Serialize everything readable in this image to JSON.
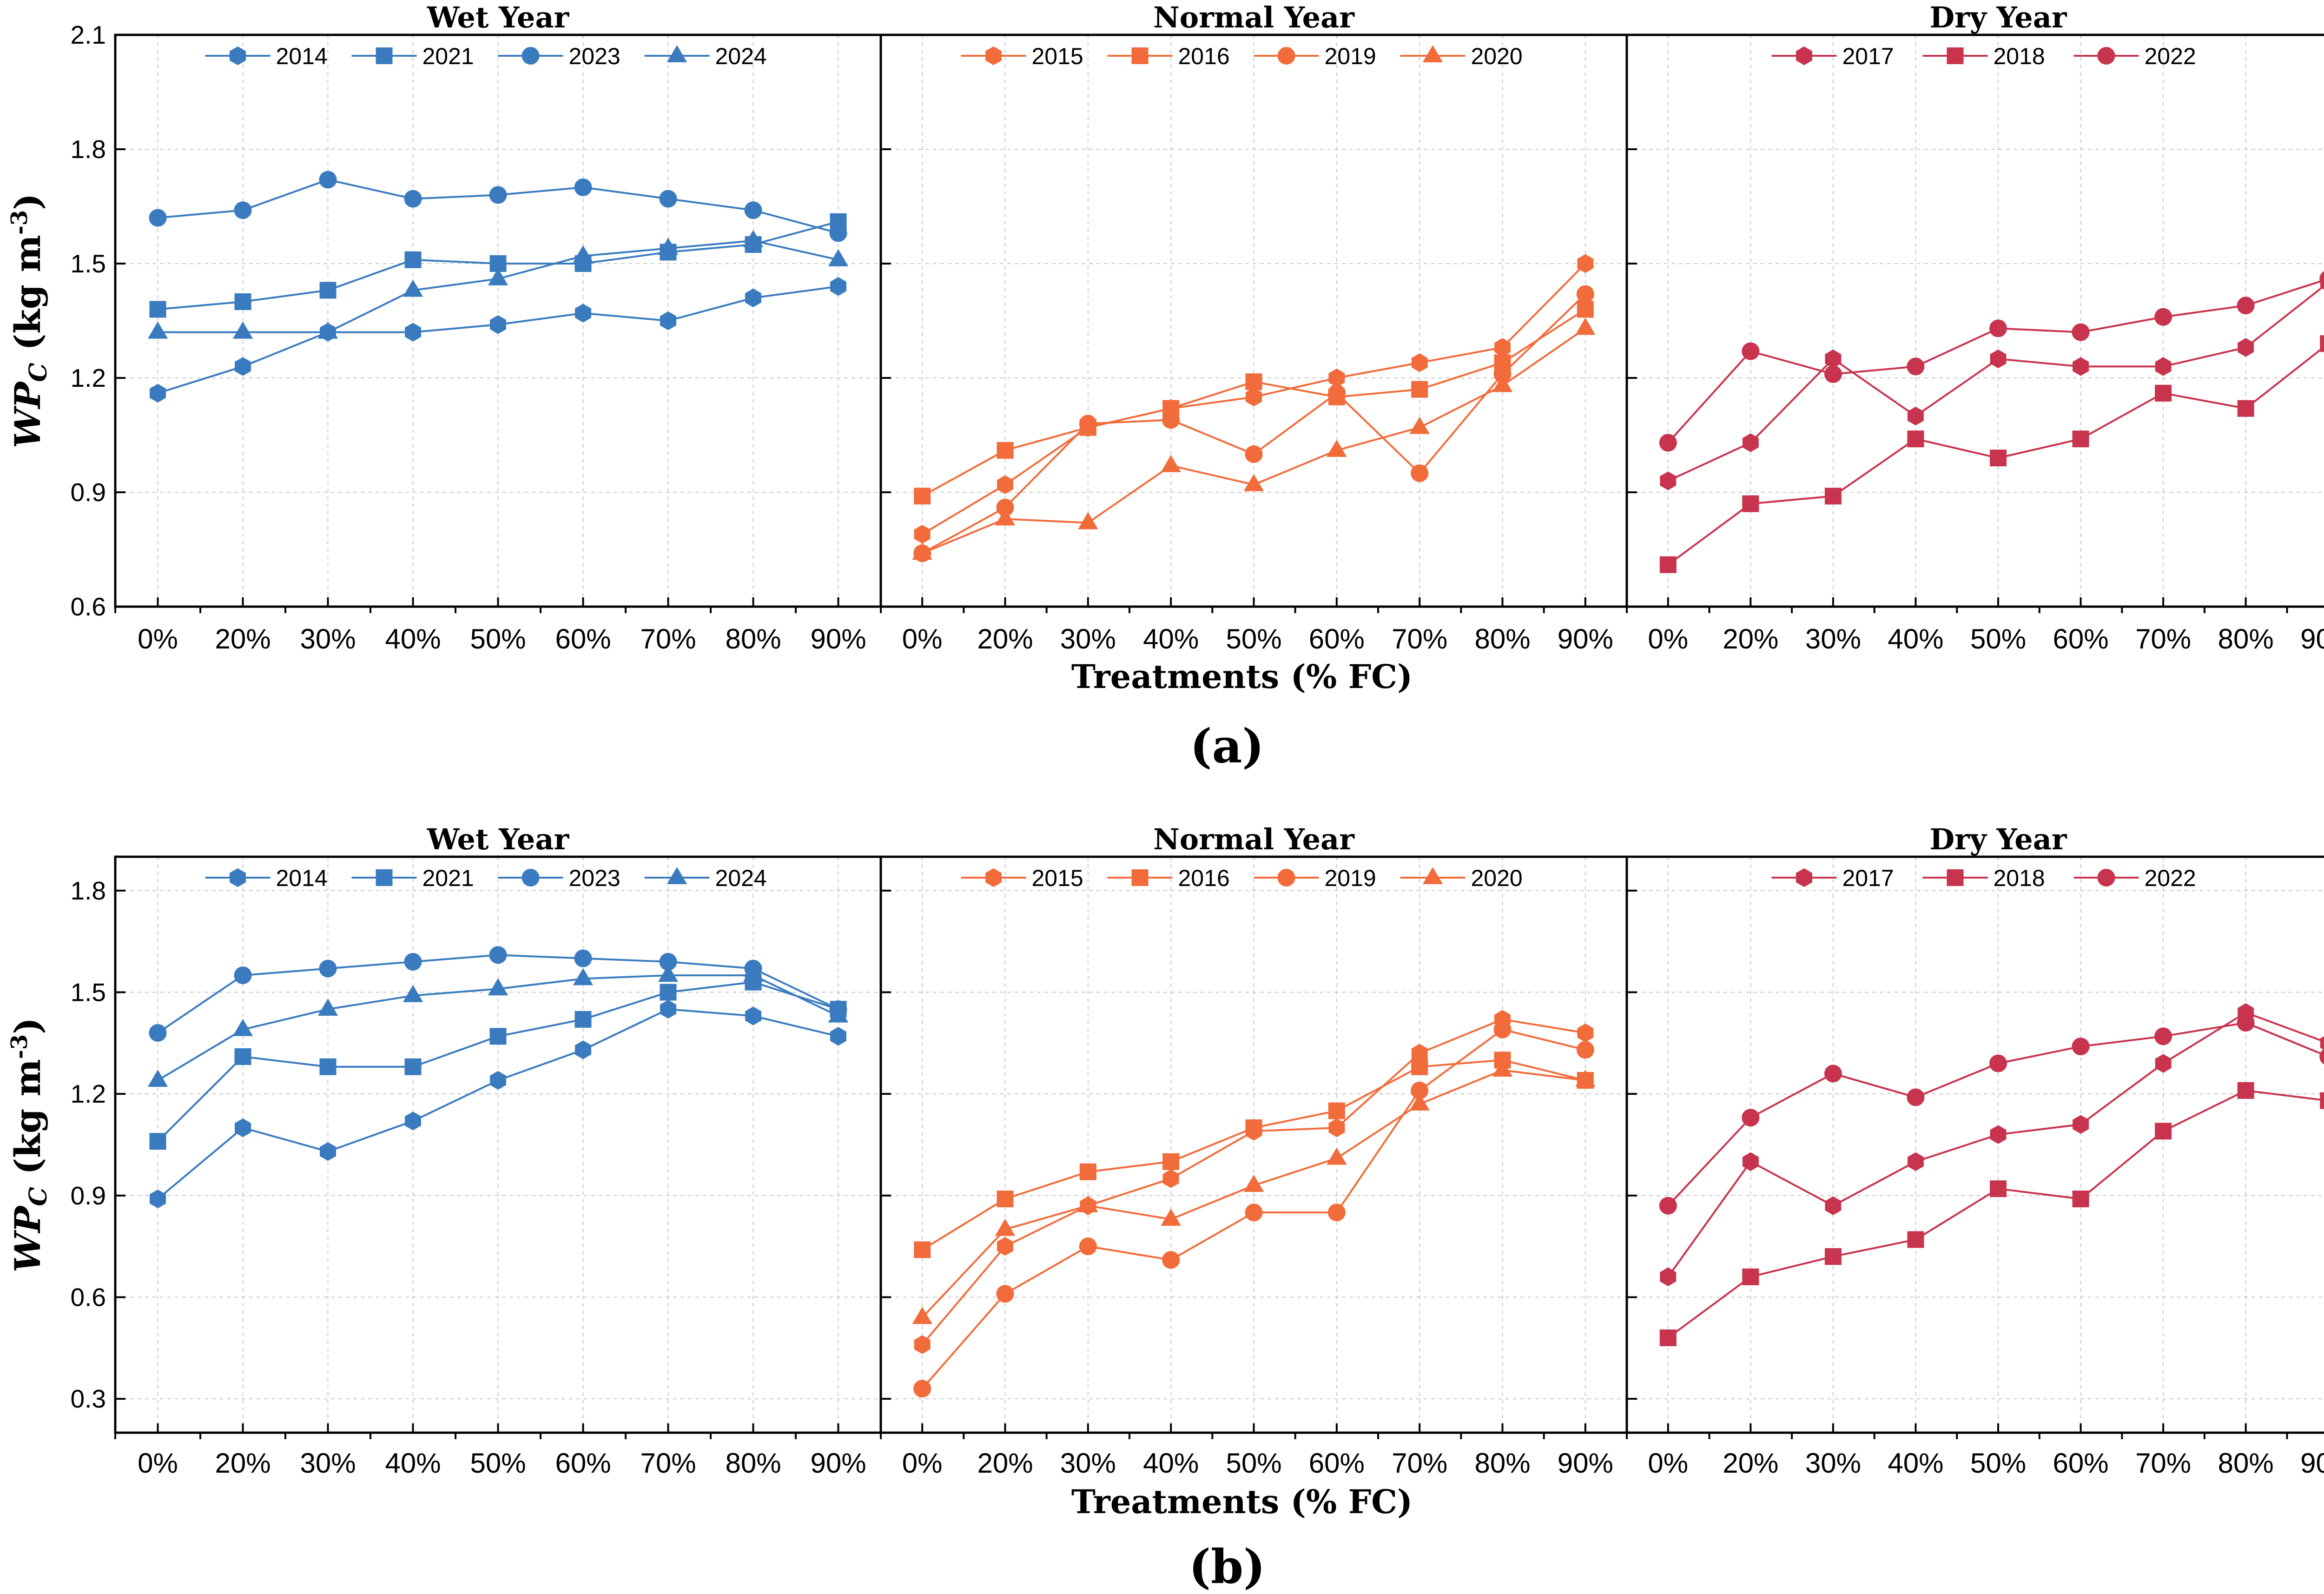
{
  "chart_data": [
    {
      "type": "line",
      "caption": "(a)",
      "ylabel_main": "WP",
      "ylabel_sub": "C",
      "ylabel_units": " (kg m",
      "ylabel_exp": "-3",
      "ylabel_close": ")",
      "xlabel": "Treatments (% FC)",
      "ylim": [
        0.6,
        2.1
      ],
      "yticks": [
        "0.6",
        "0.9",
        "1.2",
        "1.5",
        "1.8",
        "2.1"
      ],
      "ytick_values": [
        0.6,
        0.9,
        1.2,
        1.5,
        1.8,
        2.1
      ],
      "categories": [
        "0%",
        "20%",
        "30%",
        "40%",
        "50%",
        "60%",
        "70%",
        "80%",
        "90%"
      ],
      "panels": [
        {
          "title": "Wet Year",
          "color": "#3a7bbf",
          "series": [
            {
              "name": "2014",
              "marker": "hexagon",
              "values": [
                1.16,
                1.23,
                1.32,
                1.32,
                1.34,
                1.37,
                1.35,
                1.41,
                1.44
              ]
            },
            {
              "name": "2021",
              "marker": "square",
              "values": [
                1.38,
                1.4,
                1.43,
                1.51,
                1.5,
                1.5,
                1.53,
                1.55,
                1.61
              ]
            },
            {
              "name": "2023",
              "marker": "circle",
              "values": [
                1.62,
                1.64,
                1.72,
                1.67,
                1.68,
                1.7,
                1.67,
                1.64,
                1.58
              ]
            },
            {
              "name": "2024",
              "marker": "triangle",
              "values": [
                1.32,
                1.32,
                1.32,
                1.43,
                1.46,
                1.52,
                1.54,
                1.56,
                1.51
              ]
            }
          ]
        },
        {
          "title": "Normal Year",
          "color": "#f26b3a",
          "series": [
            {
              "name": "2015",
              "marker": "hexagon",
              "values": [
                0.79,
                0.92,
                1.07,
                1.12,
                1.15,
                1.2,
                1.24,
                1.28,
                1.5
              ]
            },
            {
              "name": "2016",
              "marker": "square",
              "values": [
                0.89,
                1.01,
                1.07,
                1.12,
                1.19,
                1.15,
                1.17,
                1.24,
                1.38
              ]
            },
            {
              "name": "2019",
              "marker": "circle",
              "values": [
                0.74,
                0.86,
                1.08,
                1.09,
                1.0,
                1.16,
                0.95,
                1.21,
                1.42
              ]
            },
            {
              "name": "2020",
              "marker": "triangle",
              "values": [
                0.74,
                0.83,
                0.82,
                0.97,
                0.92,
                1.01,
                1.07,
                1.18,
                1.33
              ]
            }
          ]
        },
        {
          "title": "Dry Year",
          "color": "#c8334d",
          "series": [
            {
              "name": "2017",
              "marker": "hexagon",
              "values": [
                0.93,
                1.03,
                1.25,
                1.1,
                1.25,
                1.23,
                1.23,
                1.28,
                1.45
              ]
            },
            {
              "name": "2018",
              "marker": "square",
              "values": [
                0.71,
                0.87,
                0.89,
                1.04,
                0.99,
                1.04,
                1.16,
                1.12,
                1.29
              ]
            },
            {
              "name": "2022",
              "marker": "circle",
              "values": [
                1.03,
                1.27,
                1.21,
                1.23,
                1.33,
                1.32,
                1.36,
                1.39,
                1.46
              ]
            }
          ]
        }
      ]
    },
    {
      "type": "line",
      "caption": "(b)",
      "ylabel_main": "WP",
      "ylabel_sub": "C",
      "ylabel_units": " (kg m",
      "ylabel_exp": "-3",
      "ylabel_close": ")",
      "xlabel": "Treatments (% FC)",
      "ylim": [
        0.2,
        1.9
      ],
      "yticks": [
        "0.3",
        "0.6",
        "0.9",
        "1.2",
        "1.5",
        "1.8"
      ],
      "ytick_values": [
        0.3,
        0.6,
        0.9,
        1.2,
        1.5,
        1.8
      ],
      "categories": [
        "0%",
        "20%",
        "30%",
        "40%",
        "50%",
        "60%",
        "70%",
        "80%",
        "90%"
      ],
      "panels": [
        {
          "title": "Wet Year",
          "color": "#3a7bbf",
          "series": [
            {
              "name": "2014",
              "marker": "hexagon",
              "values": [
                0.89,
                1.1,
                1.03,
                1.12,
                1.24,
                1.33,
                1.45,
                1.43,
                1.37
              ]
            },
            {
              "name": "2021",
              "marker": "square",
              "values": [
                1.06,
                1.31,
                1.28,
                1.28,
                1.37,
                1.42,
                1.5,
                1.53,
                1.45
              ]
            },
            {
              "name": "2023",
              "marker": "circle",
              "values": [
                1.38,
                1.55,
                1.57,
                1.59,
                1.61,
                1.6,
                1.59,
                1.57,
                1.45
              ]
            },
            {
              "name": "2024",
              "marker": "triangle",
              "values": [
                1.24,
                1.39,
                1.45,
                1.49,
                1.51,
                1.54,
                1.55,
                1.55,
                1.43
              ]
            }
          ]
        },
        {
          "title": "Normal Year",
          "color": "#f26b3a",
          "series": [
            {
              "name": "2015",
              "marker": "hexagon",
              "values": [
                0.46,
                0.75,
                0.87,
                0.95,
                1.09,
                1.1,
                1.32,
                1.42,
                1.38
              ]
            },
            {
              "name": "2016",
              "marker": "square",
              "values": [
                0.74,
                0.89,
                0.97,
                1.0,
                1.1,
                1.15,
                1.28,
                1.3,
                1.24
              ]
            },
            {
              "name": "2019",
              "marker": "circle",
              "values": [
                0.33,
                0.61,
                0.75,
                0.71,
                0.85,
                0.85,
                1.21,
                1.39,
                1.33
              ]
            },
            {
              "name": "2020",
              "marker": "triangle",
              "values": [
                0.54,
                0.8,
                0.87,
                0.83,
                0.93,
                1.01,
                1.17,
                1.27,
                1.24
              ]
            }
          ]
        },
        {
          "title": "Dry Year",
          "color": "#c8334d",
          "series": [
            {
              "name": "2017",
              "marker": "hexagon",
              "values": [
                0.66,
                1.0,
                0.87,
                1.0,
                1.08,
                1.11,
                1.29,
                1.44,
                1.35
              ]
            },
            {
              "name": "2018",
              "marker": "square",
              "values": [
                0.48,
                0.66,
                0.72,
                0.77,
                0.92,
                0.89,
                1.09,
                1.21,
                1.18
              ]
            },
            {
              "name": "2022",
              "marker": "circle",
              "values": [
                0.87,
                1.13,
                1.26,
                1.19,
                1.29,
                1.34,
                1.37,
                1.41,
                1.31
              ]
            }
          ]
        }
      ]
    }
  ]
}
